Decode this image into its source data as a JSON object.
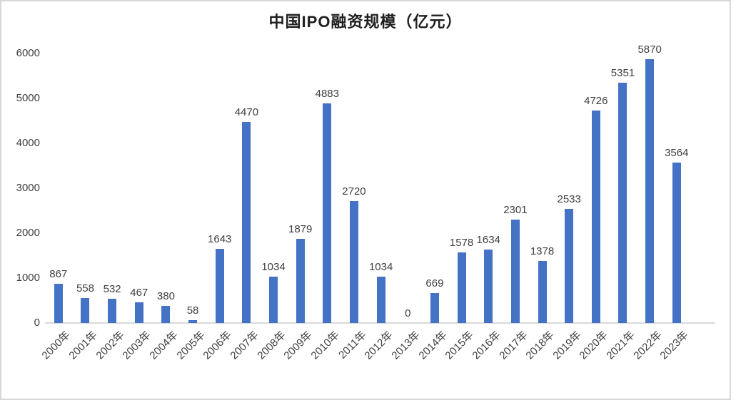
{
  "chart_data": {
    "type": "bar",
    "title": "中国IPO融资规模（亿元）",
    "categories": [
      "2000年",
      "2001年",
      "2002年",
      "2003年",
      "2004年",
      "2005年",
      "2006年",
      "2007年",
      "2008年",
      "2009年",
      "2010年",
      "2011年",
      "2012年",
      "2013年",
      "2014年",
      "2015年",
      "2016年",
      "2017年",
      "2018年",
      "2019年",
      "2020年",
      "2021年",
      "2022年",
      "2023年"
    ],
    "values": [
      867,
      558,
      532,
      467,
      380,
      58,
      1643,
      4470,
      1034,
      1879,
      4883,
      2720,
      1034,
      0,
      669,
      1578,
      1634,
      2301,
      1378,
      2533,
      4726,
      5351,
      5870,
      3564
    ],
    "xlabel": "",
    "ylabel": "",
    "ylim": [
      0,
      6000
    ],
    "yticks": [
      0,
      1000,
      2000,
      3000,
      4000,
      5000,
      6000
    ],
    "grid": false,
    "legend": false,
    "data_labels": true,
    "x_label_rotation_deg": 45,
    "colors": {
      "bar": "#4472C4",
      "labels": "#404040",
      "title": "#1F1F1F",
      "axis_line": "#D9D9D9",
      "frame_border": "#D8D8D8",
      "background": "#FFFFFF"
    }
  }
}
